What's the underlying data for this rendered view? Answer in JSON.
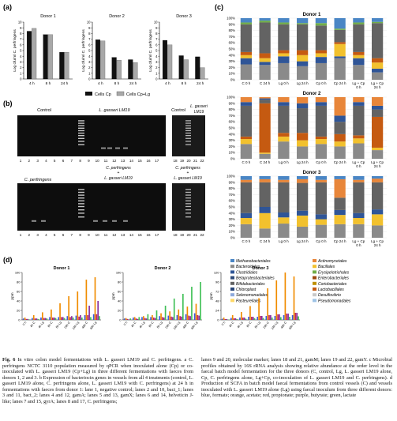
{
  "panels": {
    "a": "(a)",
    "b": "(b)",
    "c": "(c)",
    "d": "(d)"
  },
  "panel_a": {
    "ylabel": "Log cfu/ml C. perfringens",
    "yticks": [
      "0",
      "1",
      "2",
      "3",
      "4",
      "5",
      "6",
      "7",
      "8",
      "9",
      "10"
    ],
    "legend": [
      "Cells Cp",
      "Cells Cp+Lg"
    ],
    "colors": {
      "cp": "#111111",
      "cplg": "#a8a8a8"
    }
  },
  "panel_b": {
    "gel1": {
      "labels": {
        "control": "Control",
        "lgasseri": "L. gasseri LM19",
        "control2": "Control",
        "lgasseri2_a": "L. gasseri",
        "lgasseri2_b": "LM19"
      },
      "lanes": [
        "1",
        "2",
        "3",
        "4",
        "5",
        "6",
        "7",
        "8",
        "9",
        "10",
        "11",
        "12",
        "13",
        "14",
        "15",
        "16",
        "17",
        "18",
        "19",
        "20",
        "21",
        "22"
      ]
    },
    "gel2": {
      "labels": {
        "cperf": "C. perfringens",
        "cperf_lg_a": "C. perfringens",
        "cperf_lg_b": "+",
        "cperf_lg_c": "L. gasseri LM19",
        "cperf2_a": "C. perfringens",
        "cperf2_b": "+",
        "cperf2_c": "L. gasseri LM19"
      },
      "lanes": [
        "1",
        "2",
        "3",
        "4",
        "5",
        "6",
        "7",
        "8",
        "9",
        "10",
        "11",
        "12",
        "13",
        "14",
        "15",
        "16",
        "17",
        "18",
        "19",
        "20",
        "21",
        "22"
      ]
    }
  },
  "panel_c": {
    "yticks": [
      "0%",
      "10%",
      "20%",
      "30%",
      "40%",
      "50%",
      "60%",
      "70%",
      "80%",
      "90%",
      "100%"
    ],
    "categories": [
      "C 0 h",
      "C 24 h",
      "Lg 0 h",
      "Lg 24 h",
      "Cp 0 h",
      "Cp 24 h",
      "Lg + Cp 0 h",
      "Lg + Cp 24 h"
    ],
    "legend": [
      {
        "name": "Methanobacteriales",
        "color": "#4a86c5"
      },
      {
        "name": "Actinomycetales",
        "color": "#e8863a"
      },
      {
        "name": "Bacteroidales",
        "color": "#8a8a8a"
      },
      {
        "name": "Bacillales",
        "color": "#f2c12e"
      },
      {
        "name": "Clostridiales",
        "color": "#2f5597"
      },
      {
        "name": "Erysipelotrichales",
        "color": "#70ad47"
      },
      {
        "name": "Betaproteobacteriales",
        "color": "#2e4a7a"
      },
      {
        "name": "Enterobacteriales",
        "color": "#9e480e"
      },
      {
        "name": "Bifidobacteriales",
        "color": "#636363"
      },
      {
        "name": "Coriobacteriales",
        "color": "#bf9000"
      },
      {
        "name": "Chloroplast",
        "color": "#264478"
      },
      {
        "name": "Lactobacillales",
        "color": "#c55a11"
      },
      {
        "name": "Selenomonadales",
        "color": "#8faadc"
      },
      {
        "name": "Desulfovibrio",
        "color": "#c9c9c9"
      },
      {
        "name": "Pasteurellales",
        "color": "#ffd966"
      },
      {
        "name": "Pseudomonadales",
        "color": "#9dc3e6"
      }
    ]
  },
  "panel_d": {
    "ylabel": "ppm",
    "categories": [
      "0 h",
      "4h C",
      "4h Lg",
      "8h C",
      "8h Lg",
      "24h C",
      "24h Lg",
      "48h C",
      "48h Lg"
    ],
    "colors": {
      "formate": "#3b5bdb",
      "acetate": "#f08c00",
      "propionate": "#c2255c",
      "butyrate": "#862e9c",
      "lactate": "#40c057"
    }
  },
  "chart_data": [
    {
      "type": "bar",
      "title": "Donor 1",
      "categories": [
        "4 h",
        "8 h",
        "24 h"
      ],
      "ylabel": "Log cfu/ml C. perfringens",
      "ylim": [
        0,
        10
      ],
      "series": [
        {
          "name": "Cells Cp",
          "values": [
            8.4,
            7.8,
            4.7
          ]
        },
        {
          "name": "Cells Cp+Lg",
          "values": [
            8.9,
            7.8,
            4.7
          ]
        }
      ]
    },
    {
      "type": "bar",
      "title": "Donor 2",
      "categories": [
        "4 h",
        "8 h",
        "24 h"
      ],
      "ylabel": "Log cfu/ml C. perfringens",
      "ylim": [
        0,
        10
      ],
      "series": [
        {
          "name": "Cells Cp",
          "values": [
            6.9,
            3.8,
            3.4
          ]
        },
        {
          "name": "Cells Cp+Lg",
          "values": [
            6.7,
            3.3,
            2.9
          ]
        }
      ]
    },
    {
      "type": "bar",
      "title": "Donor 3",
      "categories": [
        "4 h",
        "8 h",
        "24 h"
      ],
      "ylabel": "Log cfu/ml C. perfringens",
      "ylim": [
        0,
        10
      ],
      "series": [
        {
          "name": "Cells Cp",
          "values": [
            6.8,
            4.1,
            3.9
          ]
        },
        {
          "name": "Cells Cp+Lg",
          "values": [
            6.0,
            3.4,
            2.0
          ]
        }
      ]
    },
    {
      "type": "bar",
      "title": "Donor 1",
      "ylim": [
        0,
        100
      ],
      "categories": [
        "C 0 h",
        "C 24 h",
        "Lg 0 h",
        "Lg 24 h",
        "Cp 0 h",
        "Cp 24 h",
        "Lg + Cp 0 h",
        "Lg + Cp 24 h"
      ],
      "series": [
        {
          "name": "Bacteroidales",
          "values": [
            25,
            24,
            27,
            22,
            27,
            35,
            24,
            12
          ]
        },
        {
          "name": "Clostridiales",
          "values": [
            10,
            5,
            11,
            8,
            10,
            3,
            11,
            6
          ]
        },
        {
          "name": "Bacillales",
          "values": [
            5,
            6,
            5,
            10,
            6,
            20,
            5,
            10
          ]
        },
        {
          "name": "Lactobacillales",
          "values": [
            5,
            8,
            5,
            8,
            5,
            3,
            5,
            7
          ]
        },
        {
          "name": "Bifidobacteriales",
          "values": [
            45,
            50,
            42,
            42,
            40,
            20,
            45,
            57
          ]
        },
        {
          "name": "Erysipelotrichales",
          "values": [
            3,
            3,
            3,
            2,
            4,
            2,
            3,
            2
          ]
        },
        {
          "name": "Methanobacteriales",
          "values": [
            7,
            4,
            7,
            8,
            8,
            17,
            7,
            6
          ]
        }
      ]
    },
    {
      "type": "bar",
      "title": "Donor 2",
      "ylim": [
        0,
        100
      ],
      "categories": [
        "C 0 h",
        "C 24 h",
        "Lg 0 h",
        "Lg 24 h",
        "Cp 0 h",
        "Cp 24 h",
        "Lg + Cp 0 h",
        "Lg + Cp 24 h"
      ],
      "series": [
        {
          "name": "Bacteroidales",
          "values": [
            24,
            8,
            28,
            20,
            24,
            20,
            25,
            14
          ]
        },
        {
          "name": "Bacillales",
          "values": [
            8,
            2,
            8,
            10,
            8,
            8,
            8,
            4
          ]
        },
        {
          "name": "Lactobacillales",
          "values": [
            4,
            80,
            6,
            12,
            4,
            12,
            5,
            50
          ]
        },
        {
          "name": "Bifidobacteriales",
          "values": [
            50,
            6,
            44,
            40,
            50,
            20,
            48,
            12
          ]
        },
        {
          "name": "Clostridiales",
          "values": [
            6,
            2,
            6,
            8,
            6,
            10,
            6,
            6
          ]
        },
        {
          "name": "Actinomycetales",
          "values": [
            8,
            2,
            8,
            10,
            8,
            30,
            8,
            14
          ]
        }
      ]
    },
    {
      "type": "bar",
      "title": "Donor 3",
      "ylim": [
        0,
        100
      ],
      "categories": [
        "C 0 h",
        "C 24 h",
        "Lg 0 h",
        "Lg 24 h",
        "Cp 0 h",
        "Cp 24 h",
        "Lg + Cp 0 h",
        "Lg + Cp 24 h"
      ],
      "series": [
        {
          "name": "Bacteroidales",
          "values": [
            22,
            15,
            23,
            18,
            21,
            22,
            22,
            20
          ]
        },
        {
          "name": "Bacillales",
          "values": [
            10,
            25,
            10,
            18,
            9,
            15,
            10,
            18
          ]
        },
        {
          "name": "Clostridiales",
          "values": [
            8,
            10,
            8,
            8,
            8,
            8,
            8,
            8
          ]
        },
        {
          "name": "Bifidobacteriales",
          "values": [
            50,
            40,
            49,
            45,
            52,
            20,
            50,
            44
          ]
        },
        {
          "name": "Actinomycetales",
          "values": [
            4,
            5,
            4,
            6,
            4,
            30,
            4,
            6
          ]
        },
        {
          "name": "Methanobacteriales",
          "values": [
            6,
            5,
            6,
            5,
            6,
            5,
            6,
            4
          ]
        }
      ]
    },
    {
      "type": "bar",
      "title": "Donor 1",
      "ylabel": "ppm",
      "ylim": [
        0,
        100
      ],
      "categories": [
        "0 h",
        "4h C",
        "4h Lg",
        "8h C",
        "8h Lg",
        "24h C",
        "24h Lg",
        "48h C",
        "48h Lg"
      ],
      "series": [
        {
          "name": "formate",
          "values": [
            3,
            4,
            5,
            6,
            6,
            8,
            9,
            10,
            12
          ]
        },
        {
          "name": "acetate",
          "values": [
            5,
            10,
            16,
            22,
            35,
            50,
            60,
            85,
            90
          ]
        },
        {
          "name": "propionate",
          "values": [
            2,
            3,
            4,
            5,
            6,
            6,
            7,
            10,
            12
          ]
        },
        {
          "name": "butyrate",
          "values": [
            2,
            3,
            4,
            5,
            6,
            8,
            10,
            30,
            40
          ]
        },
        {
          "name": "lactate",
          "values": [
            1,
            2,
            3,
            4,
            4,
            5,
            5,
            6,
            8
          ]
        }
      ]
    },
    {
      "type": "bar",
      "title": "Donor 2",
      "ylabel": "ppm",
      "ylim": [
        0,
        100
      ],
      "categories": [
        "0 h",
        "4h C",
        "4h Lg",
        "8h C",
        "8h Lg",
        "24h C",
        "24h Lg",
        "48h C",
        "48h Lg"
      ],
      "series": [
        {
          "name": "formate",
          "values": [
            3,
            5,
            6,
            6,
            8,
            9,
            10,
            12,
            14
          ]
        },
        {
          "name": "acetate",
          "values": [
            4,
            6,
            8,
            10,
            14,
            18,
            22,
            28,
            34
          ]
        },
        {
          "name": "propionate",
          "values": [
            2,
            3,
            4,
            5,
            6,
            7,
            8,
            9,
            10
          ]
        },
        {
          "name": "butyrate",
          "values": [
            1,
            2,
            3,
            4,
            5,
            6,
            7,
            8,
            9
          ]
        },
        {
          "name": "lactate",
          "values": [
            3,
            6,
            12,
            20,
            30,
            45,
            55,
            70,
            80
          ]
        }
      ]
    },
    {
      "type": "bar",
      "title": "Donor 3",
      "ylabel": "ppm",
      "ylim": [
        0,
        120
      ],
      "categories": [
        "0 h",
        "4h C",
        "4h Lg",
        "8h C",
        "8h Lg",
        "24h C",
        "24h Lg",
        "48h C",
        "48h Lg"
      ],
      "series": [
        {
          "name": "formate",
          "values": [
            3,
            5,
            6,
            8,
            8,
            10,
            10,
            12,
            12
          ]
        },
        {
          "name": "acetate",
          "values": [
            6,
            12,
            20,
            35,
            55,
            80,
            100,
            120,
            110
          ]
        },
        {
          "name": "propionate",
          "values": [
            2,
            4,
            6,
            8,
            10,
            12,
            14,
            16,
            18
          ]
        },
        {
          "name": "butyrate",
          "values": [
            2,
            4,
            6,
            8,
            10,
            12,
            14,
            16,
            18
          ]
        },
        {
          "name": "lactate",
          "values": [
            1,
            2,
            3,
            4,
            5,
            6,
            7,
            8,
            9
          ]
        }
      ]
    }
  ],
  "caption": {
    "left": {
      "label": "Fig. 6",
      "text": "In vitro colon model fermentations with L. gasseri LM19 and C. perfringens. a C. perfringens NCTC 3110 population measured by qPCR when inoculated alone (Cp) or co-inoculated with L. gasseri LM19 (Cp+Lg) in three different fermentations with faeces from donors 1, 2 and 3. b Expression of bacteriocin genes in vessels from all 4 treatments (control, L. gasseri LM19 alone, C. perfringens alone, L. gasseri LM19 with C. perfringens) at 24 h in fermentations with faeces from donor 1: lane 1, negative control; lanes 2 and 10, bact_1; lanes 3 and 11, bact_2; lanes 4 and 12, gamA; lanes 5 and 13, gamX; lanes 6 and 14, helveticin J-like; lanes 7 and 15, gyrA; lanes 8 and 17, C. perfringens;"
    },
    "right": {
      "text": "lanes 9 and 20, molecular marker; lanes 18 and 21, gamM; lanes 19 and 22, gamY. c Microbial profiles obtained by 16S rRNA analysis showing relative abundance at the order level in the faecal batch model fermentation for the three donors (C, control, Lg, L. gasseri LM19 alone, Cp, C. perfringens alone, Lg+Cp, co-inoculation of L. gasseri LM19 and C. perfringens). d Production of SCFA in batch model faecal fermentations from control vessels (C) and vessels inoculated with L. gasseri LM19 alone (Lg) using faecal inoculum from three different donors: blue, formate; orange, acetate; red, propionate; purple, butyrate; green, lactate"
    }
  }
}
